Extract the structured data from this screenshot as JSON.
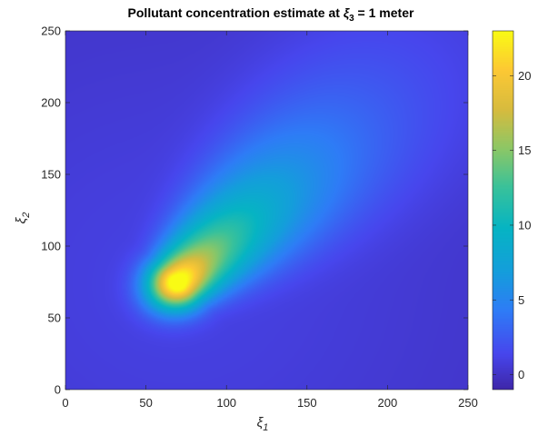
{
  "chart_data": {
    "type": "heatmap",
    "title": {
      "prefix": "Pollutant concentration estimate at ",
      "symbol": "ξ",
      "subscript": "3",
      "suffix": " = 1 meter"
    },
    "xlabel": {
      "symbol": "ξ",
      "subscript": "1"
    },
    "ylabel": {
      "symbol": "ξ",
      "subscript": "2"
    },
    "xlim": [
      0,
      250
    ],
    "ylim": [
      0,
      250
    ],
    "x_ticks": [
      "0",
      "50",
      "100",
      "150",
      "200",
      "250"
    ],
    "y_ticks": [
      "0",
      "50",
      "100",
      "150",
      "200",
      "250"
    ],
    "colorbar": {
      "range": [
        -1,
        23
      ],
      "ticks": [
        "0",
        "5",
        "10",
        "15",
        "20"
      ],
      "colormap": "parula"
    },
    "plume": {
      "peak_value": 22.5,
      "peak_location": [
        70,
        75
      ],
      "axis_direction_deg": 46,
      "extends_to": [
        215,
        230
      ],
      "background_value": 1
    }
  }
}
